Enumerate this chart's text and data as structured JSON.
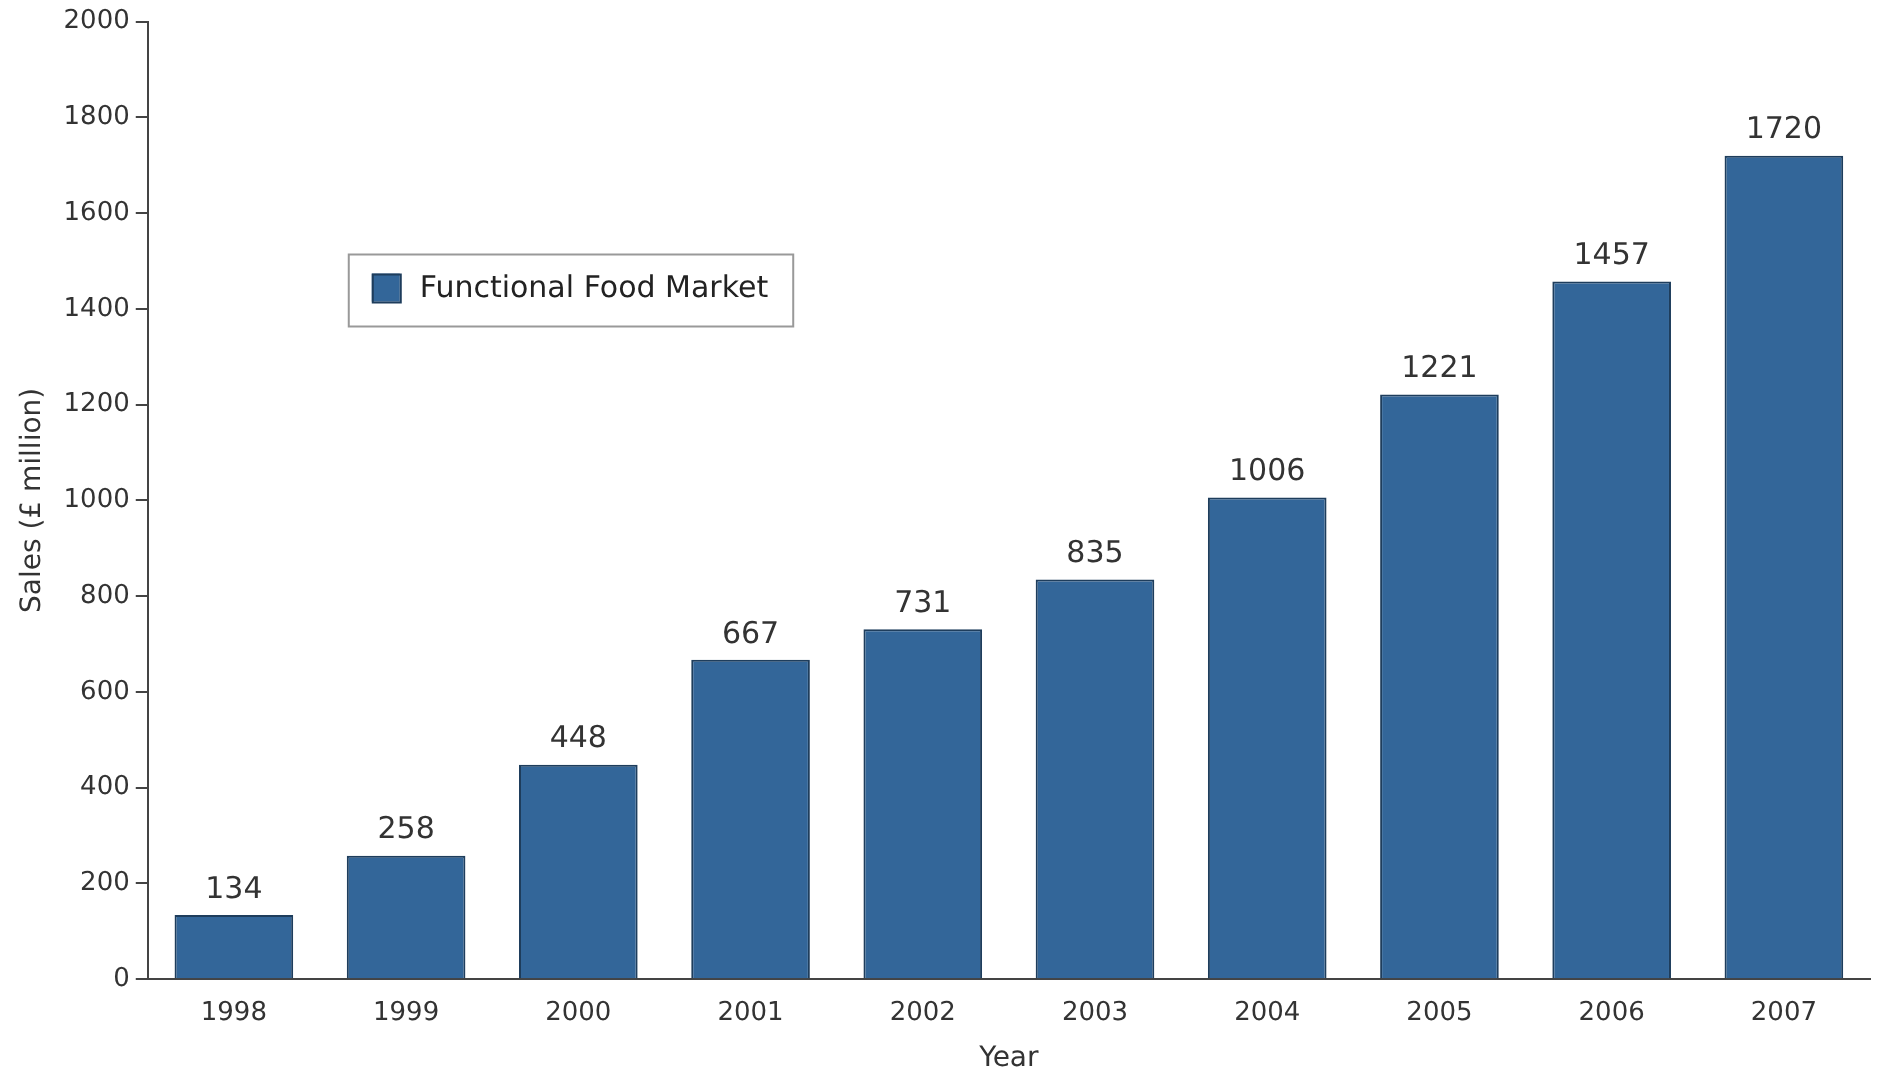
{
  "chart_data": {
    "type": "bar",
    "xlabel": "Year",
    "ylabel": "Sales (£ million)",
    "categories": [
      "1998",
      "1999",
      "2000",
      "2001",
      "2002",
      "2003",
      "2004",
      "2005",
      "2006",
      "2007"
    ],
    "series": [
      {
        "name": "Functional Food Market",
        "color": "#336699",
        "values": [
          134,
          258,
          448,
          667,
          731,
          835,
          1006,
          1221,
          1457,
          1720
        ]
      }
    ],
    "ylim": [
      0,
      2000
    ],
    "yticks": [
      0,
      200,
      400,
      600,
      800,
      1000,
      1200,
      1400,
      1600,
      1800,
      2000
    ],
    "grid": false,
    "legend": "top left",
    "data_labels": true
  }
}
